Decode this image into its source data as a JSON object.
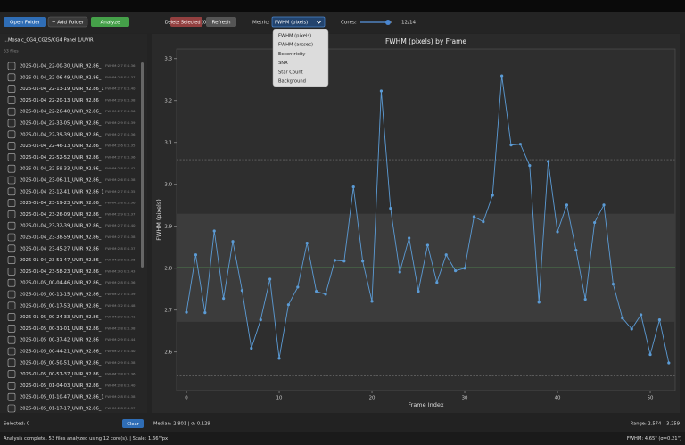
{
  "toolbar": {
    "buttons": [
      "Open Folder",
      "+ Add Folder",
      "Analyze",
      "Delete Selected (0)",
      "Refresh"
    ],
    "metric_label": "Metric:",
    "metric_selected": "FWHM (pixels)",
    "cores_label": "Cores:",
    "cores_value": "12/14"
  },
  "metric_dropdown": {
    "options": [
      "FWHM (pixels)",
      "FWHM (arcsec)",
      "Eccentricity",
      "SNR",
      "Star Count",
      "Background"
    ]
  },
  "file_panel": {
    "path": "...Mosaic_CG4_CG25/CG4 Panel 1/UVIR",
    "count": "53 files",
    "files": [
      {
        "name": "2026-01-04_22-00-30_UVIR_92.86_",
        "meta": "FWHM:2.7 E:0.36"
      },
      {
        "name": "2026-01-04_22-06-49_UVIR_92.86_",
        "meta": "FWHM:2.8 E:0.37"
      },
      {
        "name": "2026-01-04_22-13-19_UVIR_92.86_1",
        "meta": "FWHM:2.7 E:0.40"
      },
      {
        "name": "2026-01-04_22-20-13_UVIR_92.86_",
        "meta": "FWHM:2.9 E:0.38"
      },
      {
        "name": "2026-01-04_22-26-40_UVIR_92.86_",
        "meta": "FWHM:2.7 E:0.36"
      },
      {
        "name": "2026-01-04_22-33-05_UVIR_92.86_",
        "meta": "FWHM:2.9 E:0.39"
      },
      {
        "name": "2026-01-04_22-39-39_UVIR_92.86_",
        "meta": "FWHM:2.7 E:0.36"
      },
      {
        "name": "2026-01-04_22-46-13_UVIR_92.86_",
        "meta": "FWHM:2.6 E:0.35"
      },
      {
        "name": "2026-01-04_22-52-52_UVIR_92.86_",
        "meta": "FWHM:2.7 E:0.36"
      },
      {
        "name": "2026-01-04_22-59-33_UVIR_92.86_",
        "meta": "FWHM:2.8 E:0.42"
      },
      {
        "name": "2026-01-04_23-06-11_UVIR_92.86_",
        "meta": "FWHM:2.6 E:0.38"
      },
      {
        "name": "2026-01-04_23-12-41_UVIR_92.86_1",
        "meta": "FWHM:2.7 E:0.35"
      },
      {
        "name": "2026-01-04_23-19-23_UVIR_92.86_",
        "meta": "FWHM:2.8 E:0.36"
      },
      {
        "name": "2026-01-04_23-26-09_UVIR_92.86_",
        "meta": "FWHM:2.9 E:0.37"
      },
      {
        "name": "2026-01-04_23-32-39_UVIR_92.86_",
        "meta": "FWHM:2.7 E:0.40"
      },
      {
        "name": "2026-01-04_23-38-59_UVIR_92.86_",
        "meta": "FWHM:2.7 E:0.38"
      },
      {
        "name": "2026-01-04_23-45-27_UVIR_92.86_",
        "meta": "FWHM:2.8 E:0.37"
      },
      {
        "name": "2026-01-04_23-51-47_UVIR_92.86_",
        "meta": "FWHM:2.8 E:0.36"
      },
      {
        "name": "2026-01-04_23-58-23_UVIR_92.86_",
        "meta": "FWHM:3.0 E:0.43"
      },
      {
        "name": "2026-01-05_00-04-46_UVIR_92.86_",
        "meta": "FWHM:2.8 E:0.36"
      },
      {
        "name": "2026-01-05_00-11-15_UVIR_92.86_",
        "meta": "FWHM:2.7 E:0.39"
      },
      {
        "name": "2026-01-05_00-17-53_UVIR_92.86_",
        "meta": "FWHM:3.2 E:0.48"
      },
      {
        "name": "2026-01-05_00-24-33_UVIR_92.86_",
        "meta": "FWHM:2.9 E:0.41"
      },
      {
        "name": "2026-01-05_00-31-01_UVIR_92.86_",
        "meta": "FWHM:2.8 E:0.38"
      },
      {
        "name": "2026-01-05_00-37-42_UVIR_92.86_",
        "meta": "FWHM:2.9 E:0.44"
      },
      {
        "name": "2026-01-05_00-44-21_UVIR_92.86_",
        "meta": "FWHM:2.7 E:0.40"
      },
      {
        "name": "2026-01-05_00-50-51_UVIR_92.86_",
        "meta": "FWHM:2.9 E:0.38"
      },
      {
        "name": "2026-01-05_00-57-37_UVIR_92.86_",
        "meta": "FWHM:2.8 E:0.36"
      },
      {
        "name": "2026-01-05_01-04-03_UVIR_92.86_",
        "meta": "FWHM:2.8 E:0.40"
      },
      {
        "name": "2026-01-05_01-10-47_UVIR_92.86_1",
        "meta": "FWHM:2.8 E:0.38"
      },
      {
        "name": "2026-01-05_01-17-17_UVIR_92.86_",
        "meta": "FWHM:2.8 E:0.37"
      }
    ],
    "selected": "Selected: 0",
    "clear": "Clear"
  },
  "chart_data": {
    "type": "line",
    "title": "FWHM (pixels) by Frame",
    "x_label": "Frame Index",
    "y_label": "FWHM (pixels)",
    "x": [
      0,
      1,
      2,
      3,
      4,
      5,
      6,
      7,
      8,
      9,
      10,
      11,
      12,
      13,
      14,
      15,
      16,
      17,
      18,
      19,
      20,
      21,
      22,
      23,
      24,
      25,
      26,
      27,
      28,
      29,
      30,
      31,
      32,
      33,
      34,
      35,
      36,
      37,
      38,
      39,
      40,
      41,
      42,
      43,
      44,
      45,
      46,
      47,
      48,
      49,
      50,
      51,
      52
    ],
    "values": [
      2.695,
      2.832,
      2.694,
      2.889,
      2.728,
      2.864,
      2.747,
      2.609,
      2.677,
      2.774,
      2.585,
      2.713,
      2.755,
      2.86,
      2.745,
      2.738,
      2.819,
      2.817,
      2.994,
      2.817,
      2.721,
      3.223,
      2.943,
      2.791,
      2.872,
      2.745,
      2.855,
      2.766,
      2.832,
      2.794,
      2.8,
      2.923,
      2.911,
      2.974,
      3.259,
      3.094,
      3.096,
      3.045,
      2.719,
      3.055,
      2.887,
      2.951,
      2.843,
      2.726,
      2.909,
      2.951,
      2.762,
      2.681,
      2.655,
      2.689,
      2.594,
      2.677,
      2.574
    ],
    "color": "#5b9bd5",
    "median": 2.801,
    "sigma": 0.129,
    "median_color": "#5cb85c",
    "xlim": [
      -1.06,
      52.69
    ],
    "xticks": [
      0,
      10,
      20,
      30,
      40,
      50
    ],
    "ylim": [
      2.508,
      3.323
    ],
    "yticks": [
      2.6,
      2.7,
      2.8,
      2.9,
      {
        "value": 3,
        "label": "3.0"
      },
      3.1,
      3.2,
      3.3
    ]
  },
  "chart_footer": {
    "stats": "Median: 2.801 | σ: 0.129",
    "range": "Range: 2.574 – 3.259"
  },
  "status": {
    "left": "Analysis complete. 53 files analyzed using 12 core(s). | Scale: 1.66\"/px",
    "right": "FWHM: 4.65\" (σ=0.21\")"
  }
}
